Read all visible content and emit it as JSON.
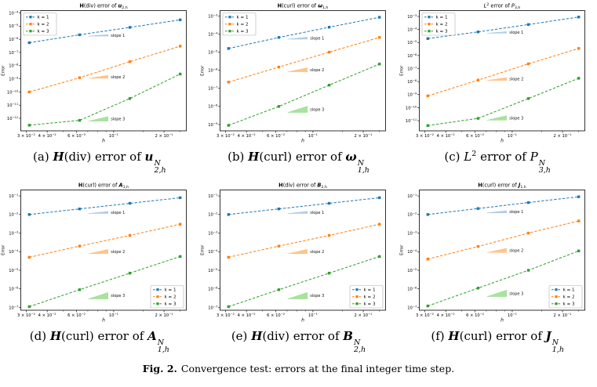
{
  "figure": {
    "label": "Fig. 2.",
    "caption": "Convergence test: errors at the final integer time step."
  },
  "axis": {
    "xlabel": "h",
    "ylabel": "Error",
    "xlim": [
      0.0278,
      0.272
    ],
    "x_ticks": [
      {
        "v": 0.03,
        "m": "3 × 10",
        "e": "−2"
      },
      {
        "v": 0.04,
        "m": "4 × 10",
        "e": "−2"
      },
      {
        "v": 0.06,
        "m": "6 × 10",
        "e": "−2"
      },
      {
        "v": 0.1,
        "m": "10",
        "e": "−1"
      },
      {
        "v": 0.2,
        "m": "2 × 10",
        "e": "−1"
      }
    ],
    "x_minor_ticks": [
      0.05,
      0.07,
      0.08,
      0.09,
      0.15,
      0.25
    ]
  },
  "legend": {
    "items": [
      {
        "label": "k = 1",
        "color": "#1f77b4",
        "light": "#aec7e8"
      },
      {
        "label": "k = 2",
        "color": "#ff7f0e",
        "light": "#ffbb78"
      },
      {
        "label": "k = 3",
        "color": "#2ca02c",
        "light": "#98df8a"
      }
    ]
  },
  "chart_data": [
    {
      "id": "a",
      "type": "line",
      "xscale": "log",
      "yscale": "log",
      "title_segments": [
        {
          "t": "H",
          "b": 1
        },
        {
          "t": "(div) error of "
        },
        {
          "t": "u",
          "b": 1,
          "i": 1
        },
        {
          "sub": "2,h"
        }
      ],
      "caption_segments": [
        {
          "t": "(a) "
        },
        {
          "t": "H",
          "bi": 1
        },
        {
          "t": "(div) error of "
        },
        {
          "t": "u",
          "bi": 1
        },
        {
          "sup": "N",
          "sub": "2,h"
        }
      ],
      "x": [
        0.03125,
        0.0625,
        0.125,
        0.25
      ],
      "series": [
        {
          "name": "k = 1",
          "values": [
            5.5e-07,
            2.2e-06,
            8e-06,
            3e-05
          ]
        },
        {
          "name": "k = 2",
          "values": [
            1e-10,
            1.2e-09,
            2e-08,
            3e-07
          ]
        },
        {
          "name": "k = 3",
          "values": [
            3e-13,
            7e-13,
            3.2e-11,
            2.3e-09
          ]
        }
      ],
      "yticks": {
        "from": -4,
        "to": -12
      },
      "ylim_exp": [
        -12.95,
        -3.82
      ],
      "legend_pos": "upper-left",
      "slope_marks": [
        {
          "label": "slope 1",
          "series": 0,
          "slope": 1,
          "dy": 0.3
        },
        {
          "label": "slope 2",
          "series": 1,
          "slope": 2,
          "dy": 0.5
        },
        {
          "label": "slope 3",
          "series": 2,
          "slope": 3,
          "dy": 0.65
        }
      ]
    },
    {
      "id": "b",
      "type": "line",
      "xscale": "log",
      "yscale": "log",
      "title_segments": [
        {
          "t": "H",
          "b": 1
        },
        {
          "t": "(curl) error of "
        },
        {
          "t": "ω",
          "b": 1,
          "i": 1
        },
        {
          "sub": "1,h"
        }
      ],
      "caption_segments": [
        {
          "t": "(b) "
        },
        {
          "t": "H",
          "bi": 1
        },
        {
          "t": "(curl) error of "
        },
        {
          "t": "ω",
          "bi": 1
        },
        {
          "sup": "N",
          "sub": "1,h"
        }
      ],
      "x": [
        0.03125,
        0.0625,
        0.125,
        0.25
      ],
      "series": [
        {
          "name": "k = 1",
          "values": [
            1.6e-05,
            6.5e-05,
            0.00024,
            0.00085
          ]
        },
        {
          "name": "k = 2",
          "values": [
            2.2e-07,
            1.5e-06,
            1e-05,
            6.5e-05
          ]
        },
        {
          "name": "k = 3",
          "values": [
            9e-10,
            1e-08,
            1.5e-07,
            2.2e-06
          ]
        }
      ],
      "yticks": {
        "from": -3,
        "to": -9
      },
      "ylim_exp": [
        -9.35,
        -2.7
      ],
      "legend_pos": "upper-left",
      "slope_marks": [
        {
          "label": "slope 1",
          "series": 0,
          "slope": 1,
          "dy": 0.3
        },
        {
          "label": "slope 2",
          "series": 1,
          "slope": 2,
          "dy": 0.5
        },
        {
          "label": "slope 3",
          "series": 2,
          "slope": 3,
          "dy": 0.65
        }
      ]
    },
    {
      "id": "c",
      "type": "line",
      "xscale": "log",
      "yscale": "log",
      "title_segments": [
        {
          "t": "L",
          "i": 1
        },
        {
          "sup": "2"
        },
        {
          "t": " error of "
        },
        {
          "t": "P",
          "i": 1
        },
        {
          "sub": "3,h"
        }
      ],
      "caption_segments": [
        {
          "t": "(c) "
        },
        {
          "t": "L",
          "i": 1
        },
        {
          "sup": "2"
        },
        {
          "t": " error of "
        },
        {
          "t": "P",
          "i": 1
        },
        {
          "sup": "N",
          "sub": "3,h"
        }
      ],
      "x": [
        0.03125,
        0.0625,
        0.125,
        0.25
      ],
      "series": [
        {
          "name": "k = 1",
          "values": [
            2e-05,
            6.5e-05,
            0.00024,
            0.0009
          ]
        },
        {
          "name": "k = 2",
          "values": [
            8e-10,
            1.3e-08,
            2.3e-07,
            3.5e-06
          ]
        },
        {
          "name": "k = 3",
          "values": [
            4.2e-12,
            1.5e-11,
            5e-10,
            1.8e-08
          ]
        }
      ],
      "yticks": {
        "from": -3,
        "to": -11
      },
      "ylim_exp": [
        -11.78,
        -2.55
      ],
      "legend_pos": "upper-left",
      "slope_marks": [
        {
          "label": "slope 1",
          "series": 0,
          "slope": 1,
          "dy": 0.3
        },
        {
          "label": "slope 2",
          "series": 1,
          "slope": 2,
          "dy": 0.5
        },
        {
          "label": "slope 3",
          "series": 2,
          "slope": 3,
          "dy": 0.65
        }
      ]
    },
    {
      "id": "d",
      "type": "line",
      "xscale": "log",
      "yscale": "log",
      "title_segments": [
        {
          "t": "H",
          "b": 1
        },
        {
          "t": "(curl) error of "
        },
        {
          "t": "A",
          "b": 1,
          "i": 1
        },
        {
          "sub": "1,h"
        }
      ],
      "caption_segments": [
        {
          "t": "(d) "
        },
        {
          "t": "H",
          "bi": 1
        },
        {
          "t": "(curl) error of "
        },
        {
          "t": "A",
          "bi": 1
        },
        {
          "sup": "N",
          "sub": "1,h"
        }
      ],
      "x": [
        0.03125,
        0.0625,
        0.125,
        0.25
      ],
      "series": [
        {
          "name": "k = 1",
          "values": [
            0.01,
            0.02,
            0.04,
            0.08
          ]
        },
        {
          "name": "k = 2",
          "values": [
            5e-05,
            0.0002,
            0.00075,
            0.003
          ]
        },
        {
          "name": "k = 3",
          "values": [
            1.1e-07,
            9e-07,
            7e-06,
            5.5e-05
          ]
        }
      ],
      "yticks": {
        "from": -1,
        "to": -7
      },
      "ylim_exp": [
        -7.15,
        -0.68
      ],
      "legend_pos": "lower-right",
      "slope_marks": [
        {
          "label": "slope 1",
          "series": 0,
          "slope": 1,
          "dy": 0.3
        },
        {
          "label": "slope 2",
          "series": 1,
          "slope": 2,
          "dy": 0.5
        },
        {
          "label": "slope 3",
          "series": 2,
          "slope": 3,
          "dy": 0.65
        }
      ]
    },
    {
      "id": "e",
      "type": "line",
      "xscale": "log",
      "yscale": "log",
      "title_segments": [
        {
          "t": "H",
          "b": 1
        },
        {
          "t": "(div) error of "
        },
        {
          "t": "B",
          "b": 1,
          "i": 1
        },
        {
          "sub": "2,h"
        }
      ],
      "caption_segments": [
        {
          "t": "(e) "
        },
        {
          "t": "H",
          "bi": 1
        },
        {
          "t": "(div) error of "
        },
        {
          "t": "B",
          "bi": 1
        },
        {
          "sup": "N",
          "sub": "2,h"
        }
      ],
      "x": [
        0.03125,
        0.0625,
        0.125,
        0.25
      ],
      "series": [
        {
          "name": "k = 1",
          "values": [
            0.01,
            0.02,
            0.04,
            0.08
          ]
        },
        {
          "name": "k = 2",
          "values": [
            5e-05,
            0.0002,
            0.00075,
            0.003
          ]
        },
        {
          "name": "k = 3",
          "values": [
            1.1e-07,
            9e-07,
            7e-06,
            5.5e-05
          ]
        }
      ],
      "yticks": {
        "from": -1,
        "to": -7
      },
      "ylim_exp": [
        -7.15,
        -0.68
      ],
      "legend_pos": "lower-right",
      "slope_marks": [
        {
          "label": "slope 1",
          "series": 0,
          "slope": 1,
          "dy": 0.3
        },
        {
          "label": "slope 2",
          "series": 1,
          "slope": 2,
          "dy": 0.5
        },
        {
          "label": "slope 3",
          "series": 2,
          "slope": 3,
          "dy": 0.65
        }
      ]
    },
    {
      "id": "f",
      "type": "line",
      "xscale": "log",
      "yscale": "log",
      "title_segments": [
        {
          "t": "H",
          "b": 1
        },
        {
          "t": "(curl) error of "
        },
        {
          "t": "J",
          "b": 1,
          "i": 1
        },
        {
          "sub": "1,h"
        }
      ],
      "caption_segments": [
        {
          "t": "(f) "
        },
        {
          "t": "H",
          "bi": 1
        },
        {
          "t": "(curl) error of "
        },
        {
          "t": "J",
          "bi": 1
        },
        {
          "sup": "N",
          "sub": "1,h"
        }
      ],
      "x": [
        0.03125,
        0.0625,
        0.125,
        0.25
      ],
      "series": [
        {
          "name": "k = 1",
          "values": [
            0.01,
            0.021,
            0.044,
            0.09
          ]
        },
        {
          "name": "k = 2",
          "values": [
            4e-05,
            0.00019,
            0.001,
            0.0045
          ]
        },
        {
          "name": "k = 3",
          "values": [
            1.2e-07,
            1.1e-06,
            1e-05,
            0.00011
          ]
        }
      ],
      "yticks": {
        "from": -1,
        "to": -7
      },
      "ylim_exp": [
        -7.15,
        -0.68
      ],
      "legend_pos": "lower-right",
      "slope_marks": [
        {
          "label": "slope 1",
          "series": 0,
          "slope": 1,
          "dy": 0.3
        },
        {
          "label": "slope 2",
          "series": 1,
          "slope": 2,
          "dy": 0.5
        },
        {
          "label": "slope 3",
          "series": 2,
          "slope": 3,
          "dy": 0.65
        }
      ]
    }
  ]
}
